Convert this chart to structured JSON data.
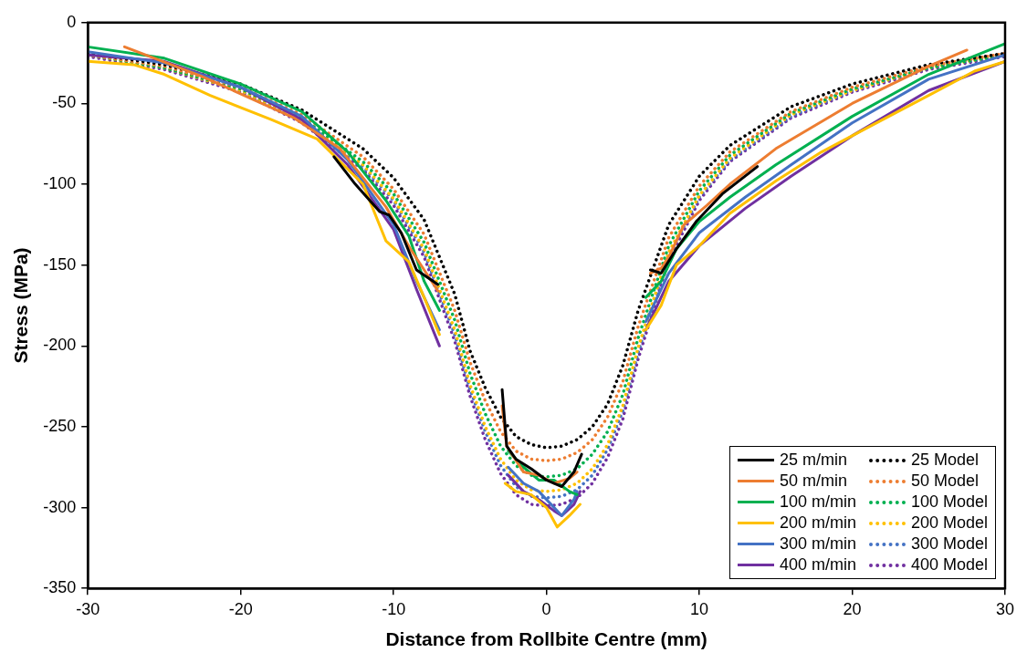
{
  "chart_data": {
    "type": "line",
    "xlabel": "Distance from Rollbite Centre (mm)",
    "ylabel": "Stress (MPa)",
    "xlim": [
      -30,
      30
    ],
    "xticks": [
      -30,
      -20,
      -10,
      0,
      10,
      20,
      30
    ],
    "ylim": [
      -350,
      0
    ],
    "yticks": [
      -350,
      -300,
      -250,
      -200,
      -150,
      -100,
      -50,
      0
    ],
    "grid": false,
    "legend": "bottom right",
    "marker": "none",
    "x": [
      -30,
      -25,
      -20,
      -16,
      -12,
      -10,
      -8,
      -6,
      -5,
      -4,
      -3,
      -2,
      -1,
      0,
      1,
      2,
      3,
      4,
      5,
      6,
      8,
      10,
      12,
      16,
      20,
      25,
      30
    ],
    "series": [
      {
        "name": "25 m/min",
        "color": "#000000",
        "line_style": "solid",
        "x": [
          -13.9,
          -12.5,
          -10.9,
          -10.3,
          -9.5,
          -8.5,
          -7.1,
          -5,
          -2.9,
          -2.6,
          -2,
          -1,
          0,
          1,
          1.8,
          2.3,
          4,
          6.8,
          7.5,
          8.5,
          9.8,
          11.5,
          13.8
        ],
        "values": [
          -83,
          -100,
          -117,
          -119,
          -130,
          -153,
          -162,
          null,
          -227,
          -262,
          -270,
          -276,
          -283,
          -287,
          -278,
          -267,
          null,
          -153,
          -155,
          -140,
          -123,
          -106,
          -89
        ]
      },
      {
        "name": "50 m/min",
        "color": "#ed7d31",
        "line_style": "solid",
        "x": [
          -27.6,
          -22.6,
          -16.5,
          -13.5,
          -10.5,
          -8.9,
          -7.1,
          -5,
          -2.9,
          -2.6,
          -1.5,
          -0.5,
          0.5,
          1.5,
          2,
          4,
          6.8,
          7.5,
          8,
          9,
          10.5,
          12,
          15,
          20,
          25,
          27.5
        ],
        "values": [
          -15,
          -33,
          -59,
          -78,
          -114,
          -140,
          -166,
          null,
          -237,
          -262,
          -278,
          -280,
          -285,
          -282,
          -278,
          null,
          -155,
          -152,
          -145,
          -125,
          -113,
          -100,
          -78,
          -50,
          -27,
          -17
        ]
      },
      {
        "name": "100 m/min",
        "color": "#00b050",
        "line_style": "solid",
        "x": [
          -30,
          -25,
          -20,
          -16,
          -13,
          -10.5,
          -9,
          -8,
          -7,
          -5,
          -2.5,
          -1.5,
          -0.5,
          0.5,
          1.5,
          2,
          4,
          6.5,
          7.5,
          8.5,
          10,
          12,
          15,
          20,
          25,
          30
        ],
        "values": [
          -15,
          -22,
          -38,
          -55,
          -80,
          -110,
          -132,
          -160,
          -178,
          null,
          -265,
          -275,
          -283,
          -283,
          -290,
          -292,
          null,
          -170,
          -160,
          -140,
          -123,
          -108,
          -88,
          -58,
          -32,
          -13
        ]
      },
      {
        "name": "200 m/min",
        "color": "#ffc000",
        "line_style": "solid",
        "x": [
          -30,
          -27,
          -25,
          -22,
          -18,
          -15,
          -12,
          -10.5,
          -9,
          -8,
          -7,
          -5,
          -2.7,
          -2,
          -1,
          0,
          0.7,
          1.5,
          2.2,
          4,
          6.5,
          7.5,
          8.5,
          10,
          12,
          15,
          18,
          22,
          25,
          28,
          30
        ],
        "values": [
          -24,
          -26,
          -32,
          -45,
          -60,
          -72,
          -100,
          -135,
          -148,
          -170,
          -193,
          null,
          -285,
          -290,
          -292,
          -300,
          -312,
          -305,
          -298,
          null,
          -190,
          -175,
          -150,
          -138,
          -118,
          -98,
          -80,
          -60,
          -45,
          -30,
          -24
        ]
      },
      {
        "name": "300 m/min",
        "color": "#4472c4",
        "line_style": "solid",
        "x": [
          -30,
          -25,
          -20,
          -16,
          -13,
          -10,
          -8.5,
          -7,
          -5,
          -2.5,
          -1.5,
          -0.5,
          0.5,
          1,
          1.8,
          2,
          4,
          6.5,
          8,
          10,
          13,
          16,
          20,
          25,
          30
        ],
        "values": [
          -18,
          -25,
          -40,
          -58,
          -85,
          -125,
          -160,
          -190,
          null,
          -275,
          -285,
          -290,
          -300,
          -305,
          -295,
          -290,
          null,
          -185,
          -155,
          -130,
          -108,
          -88,
          -62,
          -35,
          -20
        ]
      },
      {
        "name": "400 m/min",
        "color": "#7030a0",
        "line_style": "solid",
        "x": [
          -30,
          -25,
          -20,
          -16,
          -13,
          -10,
          -8.5,
          -7,
          -5,
          -2.5,
          -1.5,
          -0.5,
          0.5,
          1,
          1.8,
          2.2,
          4,
          6.5,
          8,
          10,
          13,
          16,
          20,
          25,
          30
        ],
        "values": [
          -20,
          -24,
          -40,
          -60,
          -88,
          -128,
          -165,
          -200,
          null,
          -280,
          -290,
          -295,
          -302,
          -305,
          -298,
          -290,
          null,
          -190,
          -160,
          -138,
          -115,
          -95,
          -70,
          -42,
          -24
        ]
      },
      {
        "name": "25 Model",
        "color": "#000000",
        "line_style": "dotted",
        "values": [
          -19,
          -26,
          -38,
          -54,
          -78,
          -96,
          -122,
          -168,
          -203,
          -226,
          -244,
          -256,
          -261,
          -263,
          -262,
          -258,
          -250,
          -236,
          -212,
          -178,
          -125,
          -95,
          -76,
          -52,
          -38,
          -26,
          -19
        ]
      },
      {
        "name": "50 Model",
        "color": "#ed7d31",
        "line_style": "dotted",
        "values": [
          -20,
          -27,
          -40,
          -57,
          -83,
          -103,
          -131,
          -178,
          -210,
          -234,
          -253,
          -265,
          -270,
          -271,
          -270,
          -266,
          -258,
          -244,
          -222,
          -188,
          -133,
          -101,
          -80,
          -55,
          -40,
          -27,
          -19
        ]
      },
      {
        "name": "100 Model",
        "color": "#00b050",
        "line_style": "dotted",
        "values": [
          -20,
          -28,
          -41,
          -59,
          -86,
          -106,
          -136,
          -184,
          -217,
          -242,
          -262,
          -274,
          -280,
          -281,
          -280,
          -276,
          -267,
          -253,
          -230,
          -195,
          -138,
          -104,
          -82,
          -56,
          -41,
          -28,
          -20
        ]
      },
      {
        "name": "200 Model",
        "color": "#ffc000",
        "line_style": "dotted",
        "values": [
          -20,
          -28,
          -42,
          -60,
          -88,
          -109,
          -140,
          -190,
          -224,
          -250,
          -270,
          -283,
          -289,
          -290,
          -289,
          -285,
          -276,
          -261,
          -237,
          -201,
          -142,
          -107,
          -84,
          -57,
          -42,
          -28,
          -20
        ]
      },
      {
        "name": "300 Model",
        "color": "#4472c4",
        "line_style": "dotted",
        "values": [
          -20,
          -28,
          -42,
          -61,
          -89,
          -110,
          -142,
          -193,
          -227,
          -253,
          -274,
          -287,
          -293,
          -294,
          -293,
          -289,
          -280,
          -264,
          -240,
          -204,
          -144,
          -108,
          -85,
          -58,
          -42,
          -28,
          -20
        ]
      },
      {
        "name": "400 Model",
        "color": "#7030a0",
        "line_style": "dotted",
        "values": [
          -21,
          -29,
          -43,
          -62,
          -91,
          -113,
          -145,
          -197,
          -231,
          -258,
          -279,
          -292,
          -298,
          -299,
          -298,
          -294,
          -285,
          -269,
          -245,
          -208,
          -147,
          -110,
          -86,
          -59,
          -43,
          -29,
          -21
        ]
      }
    ]
  }
}
